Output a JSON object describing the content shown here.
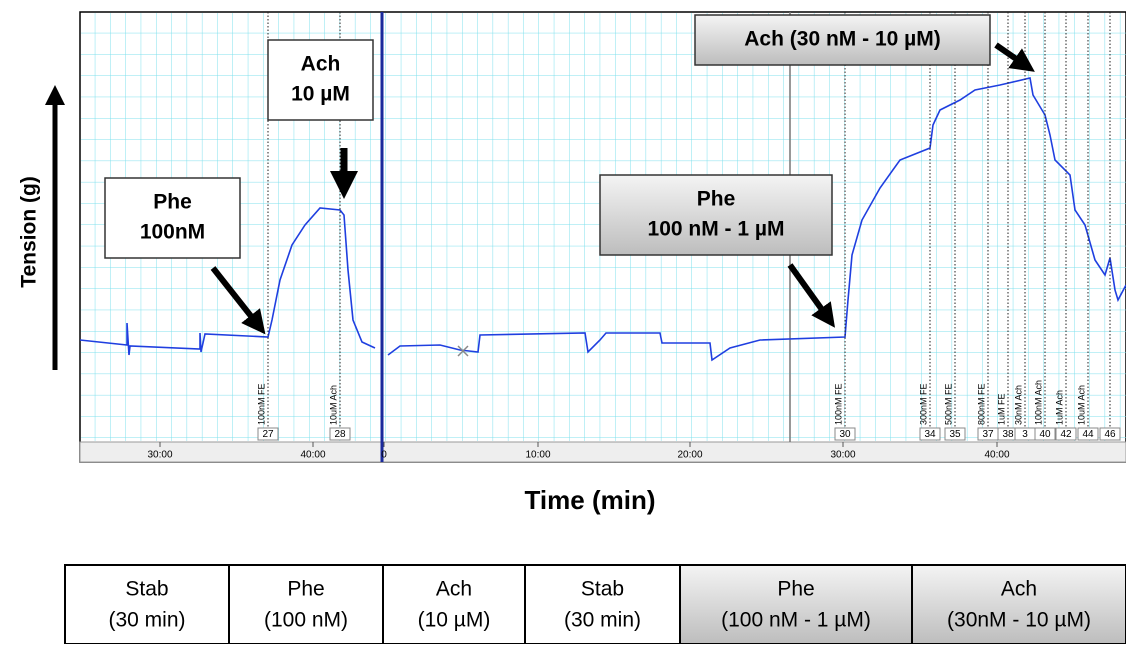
{
  "axis_labels": {
    "y": "Tension (g)",
    "x": "Time (min)"
  },
  "time_ticks": [
    "30:00",
    "40:00",
    "0",
    "10:00",
    "20:00",
    "30:00",
    "40:00"
  ],
  "events": [
    {
      "label": "100nM FE",
      "number": "27"
    },
    {
      "label": "10uM Ach",
      "number": "28"
    },
    {
      "label": "100nM FE",
      "number": "30"
    },
    {
      "label": "300nM FE",
      "number": "34"
    },
    {
      "label": "500nM FE",
      "number": "35"
    },
    {
      "label": "800nM FE",
      "number": "37"
    },
    {
      "label": "1uM FE",
      "number": "38"
    },
    {
      "label": "30nM Ach",
      "number": "3"
    },
    {
      "label": "100nM Ach",
      "number": "40"
    },
    {
      "label": "1uM Ach",
      "number": "42"
    },
    {
      "label": "10uM Ach",
      "number": "44"
    },
    {
      "number": "46"
    }
  ],
  "annotations": [
    {
      "lines": [
        "Phe",
        "100nM"
      ]
    },
    {
      "lines": [
        "Ach",
        "10 µM"
      ]
    },
    {
      "lines": [
        "Ach (30 nM - 10 µM)"
      ]
    },
    {
      "lines": [
        "Phe",
        "100 nM - 1 µM"
      ]
    }
  ],
  "table": {
    "cells": [
      [
        "Stab",
        "(30 min)"
      ],
      [
        "Phe",
        "(100 nM)"
      ],
      [
        "Ach",
        "(10 µM)"
      ],
      [
        "Stab",
        "(30 min)"
      ],
      [
        "Phe",
        "(100 nM - 1 µM)"
      ],
      [
        "Ach",
        "(30nM - 10 µM)"
      ]
    ]
  }
}
